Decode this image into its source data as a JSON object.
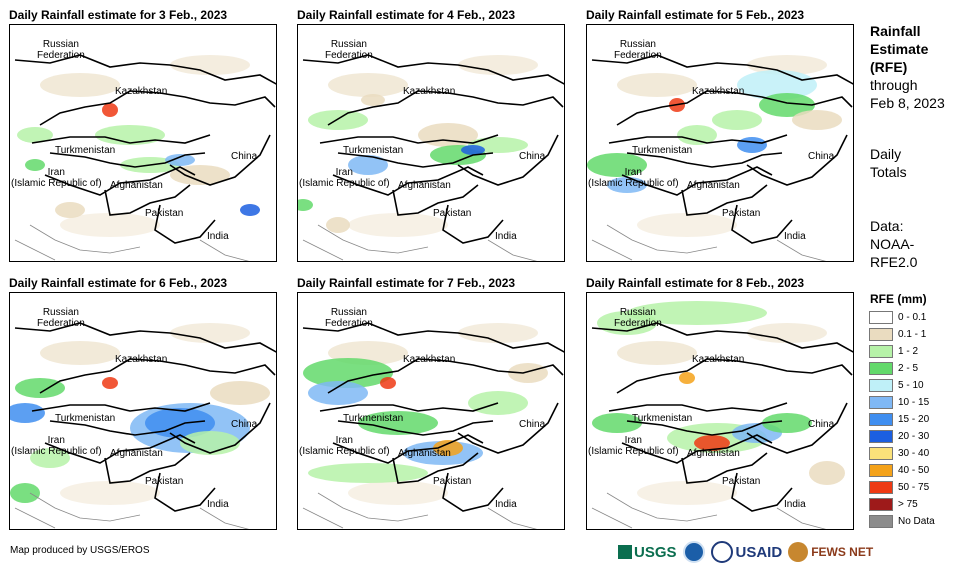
{
  "panels": [
    {
      "title": "Daily Rainfall estimate for 3 Feb., 2023"
    },
    {
      "title": "Daily Rainfall estimate for 4 Feb., 2023"
    },
    {
      "title": "Daily Rainfall estimate for 5 Feb., 2023"
    },
    {
      "title": "Daily Rainfall estimate for 6 Feb., 2023"
    },
    {
      "title": "Daily Rainfall estimate for 7 Feb., 2023"
    },
    {
      "title": "Daily Rainfall estimate for 8 Feb., 2023"
    }
  ],
  "map_labels": {
    "russia_1": "Russian",
    "russia_2": "Federation",
    "kazakhstan": "Kazakhstan",
    "turkmenistan": "Turkmenistan",
    "china": "China",
    "iran_1": "Iran",
    "iran_2": "(Islamic Republic of)",
    "afghanistan": "Afghanistan",
    "pakistan": "Pakistan",
    "india": "India"
  },
  "side": {
    "title_1": "Rainfall",
    "title_2": "Estimate",
    "title_3": "(RFE)",
    "through": "through",
    "date": "Feb 8, 2023",
    "daily_1": "Daily",
    "daily_2": "Totals",
    "data_1": "Data:",
    "data_2": "NOAA-",
    "data_3": "RFE2.0"
  },
  "legend": {
    "title": "RFE (mm)",
    "items": [
      {
        "label": "0 - 0.1",
        "color": "#ffffff"
      },
      {
        "label": "0.1 - 1",
        "color": "#eadcc0"
      },
      {
        "label": "1 - 2",
        "color": "#b6f2a8"
      },
      {
        "label": "2 - 5",
        "color": "#63d96b"
      },
      {
        "label": "5 - 10",
        "color": "#bff0f8"
      },
      {
        "label": "10 - 15",
        "color": "#7fb8f5"
      },
      {
        "label": "15 - 20",
        "color": "#3f8ef0"
      },
      {
        "label": "20 - 30",
        "color": "#1c5fe0"
      },
      {
        "label": "30 - 40",
        "color": "#fbe27a"
      },
      {
        "label": "40 - 50",
        "color": "#f4a21a"
      },
      {
        "label": "50 - 75",
        "color": "#ee3a14"
      },
      {
        "label": "> 75",
        "color": "#9e1a1a"
      },
      {
        "label": "No Data",
        "color": "#8c8c8c"
      }
    ]
  },
  "credit": "Map produced by USGS/EROS",
  "logos": {
    "usgs": "USGS",
    "usaid": "USAID",
    "fews": "FEWS NET"
  }
}
